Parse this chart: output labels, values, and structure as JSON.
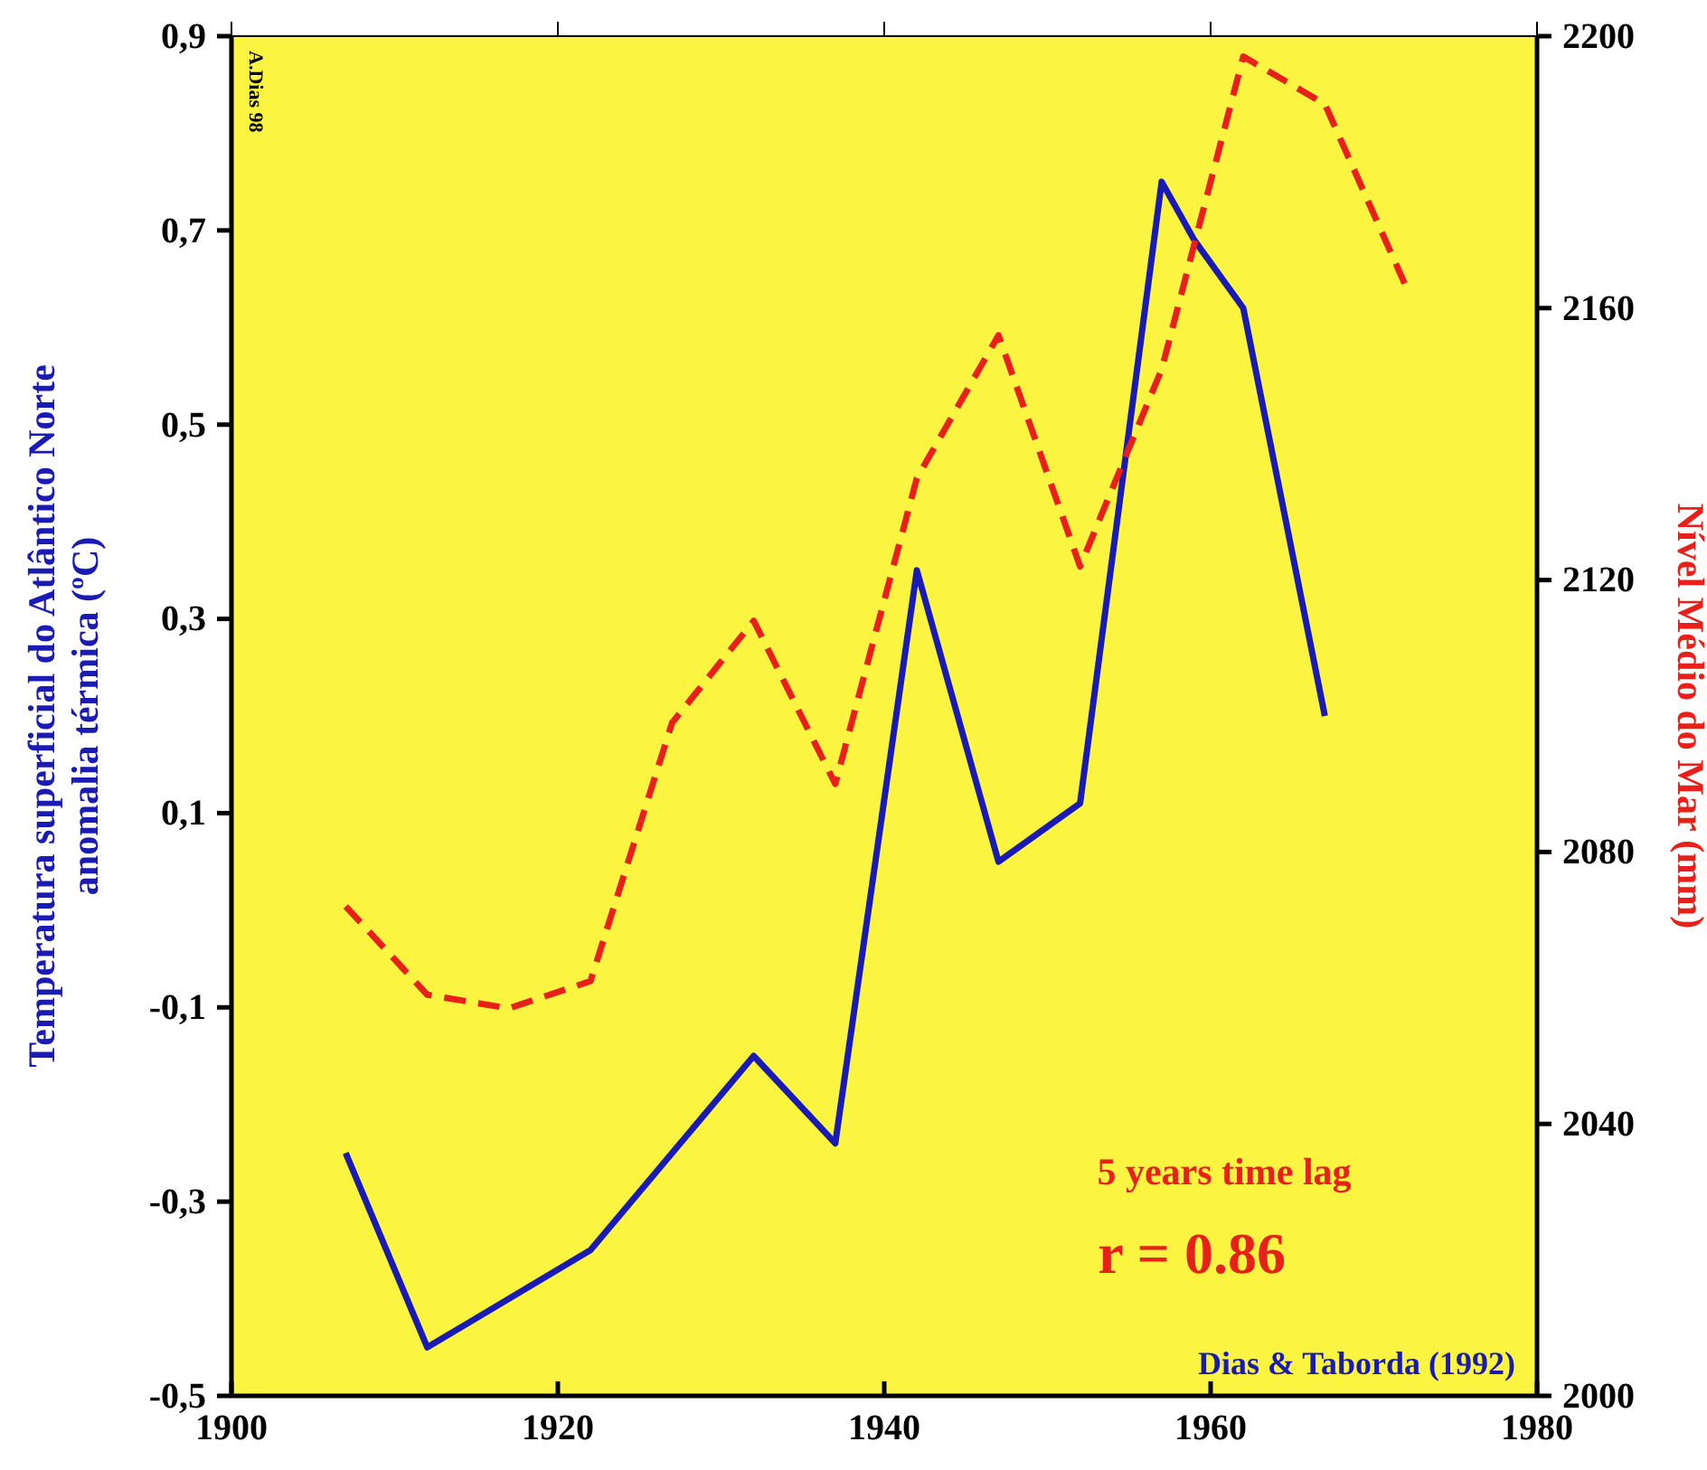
{
  "chart_data": {
    "type": "line",
    "ylabel": "Temperatura superficial do Atlântico Norte\nanomalia térmica (ºC)",
    "y2label": "Nível Médio do Mar (mm)",
    "annotations": [
      "A.Dias 98",
      "5 years time lag",
      "r = 0.86",
      "Dias & Taborda (1992)"
    ],
    "series": [
      {
        "color": "#1a1ab4",
        "line_style": "solid",
        "x": [
          1907,
          1912,
          1922,
          1932,
          1937,
          1942,
          1947,
          1952,
          1957,
          1959,
          1962,
          1967
        ],
        "values": [
          -0.25,
          -0.45,
          -0.35,
          -0.15,
          -0.24,
          0.35,
          0.05,
          0.11,
          0.75,
          0.69,
          0.62,
          0.2
        ]
      },
      {
        "color": "#e8201a",
        "line_style": "dashed",
        "axis": "y2",
        "x": [
          1907,
          1912,
          1917,
          1922,
          1927,
          1932,
          1937,
          1942,
          1947,
          1952,
          1957,
          1962,
          1967,
          1972
        ],
        "values": [
          2072,
          2059,
          2057,
          2061,
          2099,
          2114,
          2090,
          2135,
          2156,
          2122,
          2151,
          2197,
          2190,
          2163
        ]
      }
    ],
    "xlim": [
      1900,
      1980
    ],
    "xticks": [
      1900,
      1920,
      1940,
      1960,
      1980
    ],
    "ylim": [
      -0.5,
      0.9
    ],
    "yticks": [
      {
        "value": -0.5,
        "label": "-0,5"
      },
      {
        "value": -0.3,
        "label": "-0,3"
      },
      {
        "value": -0.1,
        "label": "-0,1"
      },
      {
        "value": 0.1,
        "label": "0,1"
      },
      {
        "value": 0.3,
        "label": "0,3"
      },
      {
        "value": 0.5,
        "label": "0,5"
      },
      {
        "value": 0.7,
        "label": "0,7"
      },
      {
        "value": 0.9,
        "label": "0,9"
      }
    ],
    "y2lim": [
      2000,
      2200
    ],
    "y2ticks": [
      2000,
      2040,
      2080,
      2120,
      2160,
      2200
    ],
    "grid": false,
    "marker": "none"
  }
}
